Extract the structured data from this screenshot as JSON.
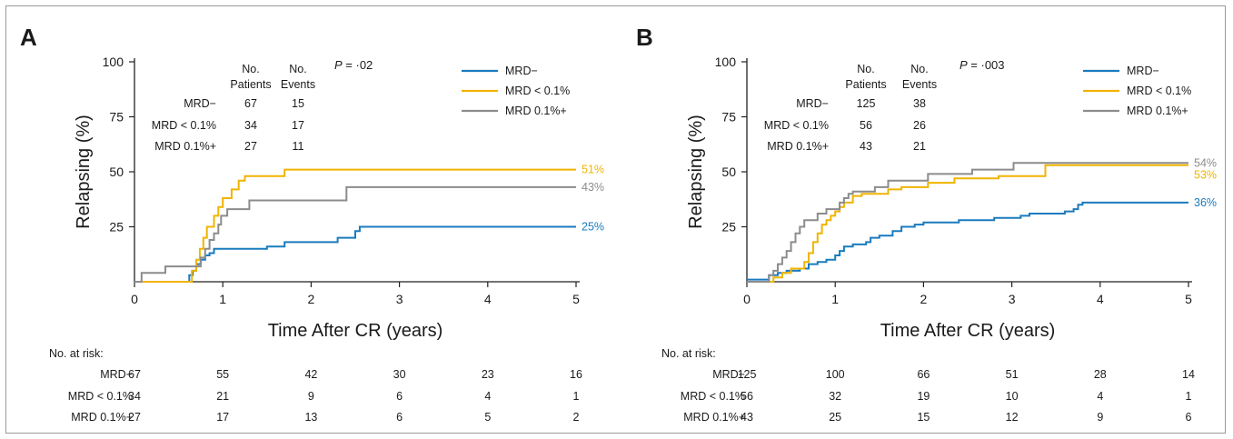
{
  "chart_data": [
    {
      "type": "line",
      "panel_label": "A",
      "xlabel": "Time After CR (years)",
      "ylabel": "Relapsing (%)",
      "xlim": [
        0,
        5
      ],
      "ylim": [
        0,
        100
      ],
      "x_ticks": [
        "0",
        "1",
        "2",
        "3",
        "4",
        "5"
      ],
      "y_ticks": [
        "25",
        "50",
        "75",
        "100"
      ],
      "p_value_label": "P",
      "p_value_text": " = ·02",
      "legend": [
        {
          "name": "MRD−",
          "color": "#1a7bbf"
        },
        {
          "name": "MRD < 0.1%",
          "color": "#f0b400"
        },
        {
          "name": "MRD 0.1%+",
          "color": "#8c8c8c"
        }
      ],
      "summary_table": {
        "col1_header_1": "No.",
        "col1_header_2": "Patients",
        "col2_header_1": "No.",
        "col2_header_2": "Events",
        "rows": [
          {
            "label": "MRD−",
            "patients": "67",
            "events": "15"
          },
          {
            "label": "MRD < 0.1%",
            "patients": "34",
            "events": "17"
          },
          {
            "label": "MRD 0.1%+",
            "patients": "27",
            "events": "11"
          }
        ]
      },
      "series": [
        {
          "name": "MRD−",
          "color": "#1a7bbf",
          "end_label": "25%",
          "points": [
            [
              0,
              0
            ],
            [
              0.6,
              0
            ],
            [
              0.62,
              3
            ],
            [
              0.66,
              5
            ],
            [
              0.7,
              8
            ],
            [
              0.75,
              10
            ],
            [
              0.8,
              12
            ],
            [
              0.85,
              13
            ],
            [
              0.9,
              15
            ],
            [
              1.5,
              15
            ],
            [
              1.5,
              16
            ],
            [
              1.7,
              16
            ],
            [
              1.7,
              18
            ],
            [
              2.3,
              18
            ],
            [
              2.3,
              20
            ],
            [
              2.5,
              20
            ],
            [
              2.5,
              23
            ],
            [
              2.55,
              23
            ],
            [
              2.55,
              25
            ],
            [
              5,
              25
            ]
          ]
        },
        {
          "name": "MRD < 0.1%",
          "color": "#f0b400",
          "end_label": "51%",
          "points": [
            [
              0,
              0
            ],
            [
              0.65,
              0
            ],
            [
              0.65,
              5
            ],
            [
              0.7,
              10
            ],
            [
              0.74,
              15
            ],
            [
              0.78,
              20
            ],
            [
              0.82,
              25
            ],
            [
              0.88,
              25
            ],
            [
              0.9,
              30
            ],
            [
              0.95,
              34
            ],
            [
              1.0,
              38
            ],
            [
              1.1,
              38
            ],
            [
              1.1,
              42
            ],
            [
              1.18,
              42
            ],
            [
              1.18,
              46
            ],
            [
              1.25,
              46
            ],
            [
              1.25,
              48
            ],
            [
              1.7,
              48
            ],
            [
              1.7,
              51
            ],
            [
              5,
              51
            ]
          ]
        },
        {
          "name": "MRD 0.1%+",
          "color": "#8c8c8c",
          "end_label": "43%",
          "points": [
            [
              0,
              0
            ],
            [
              0.08,
              0
            ],
            [
              0.08,
              4
            ],
            [
              0.35,
              4
            ],
            [
              0.35,
              7
            ],
            [
              0.75,
              7
            ],
            [
              0.75,
              11
            ],
            [
              0.8,
              15
            ],
            [
              0.85,
              19
            ],
            [
              0.9,
              22
            ],
            [
              0.95,
              26
            ],
            [
              0.98,
              30
            ],
            [
              1.05,
              30
            ],
            [
              1.05,
              33
            ],
            [
              1.3,
              33
            ],
            [
              1.3,
              37
            ],
            [
              2.4,
              37
            ],
            [
              2.4,
              43
            ],
            [
              5,
              43
            ]
          ]
        }
      ],
      "at_risk": {
        "title": "No. at risk:",
        "rows": [
          {
            "label": "MRD−",
            "values": [
              "67",
              "55",
              "42",
              "30",
              "23",
              "16"
            ]
          },
          {
            "label": "MRD < 0.1%",
            "values": [
              "34",
              "21",
              "9",
              "6",
              "4",
              "1"
            ]
          },
          {
            "label": "MRD 0.1%+",
            "values": [
              "27",
              "17",
              "13",
              "6",
              "5",
              "2"
            ]
          }
        ]
      }
    },
    {
      "type": "line",
      "panel_label": "B",
      "xlabel": "Time After CR (years)",
      "ylabel": "Relapsing (%)",
      "xlim": [
        0,
        5
      ],
      "ylim": [
        0,
        100
      ],
      "x_ticks": [
        "0",
        "1",
        "2",
        "3",
        "4",
        "5"
      ],
      "y_ticks": [
        "25",
        "50",
        "75",
        "100"
      ],
      "p_value_label": "P",
      "p_value_text": " = ·003",
      "legend": [
        {
          "name": "MRD−",
          "color": "#1a7bbf"
        },
        {
          "name": "MRD < 0.1%",
          "color": "#f0b400"
        },
        {
          "name": "MRD 0.1%+",
          "color": "#8c8c8c"
        }
      ],
      "summary_table": {
        "col1_header_1": "No.",
        "col1_header_2": "Patients",
        "col2_header_1": "No.",
        "col2_header_2": "Events",
        "rows": [
          {
            "label": "MRD−",
            "patients": "125",
            "events": "38"
          },
          {
            "label": "MRD < 0.1%",
            "patients": "56",
            "events": "26"
          },
          {
            "label": "MRD 0.1%+",
            "patients": "43",
            "events": "21"
          }
        ]
      },
      "series": [
        {
          "name": "MRD−",
          "color": "#1a7bbf",
          "end_label": "36%",
          "points": [
            [
              0,
              1
            ],
            [
              0.2,
              1
            ],
            [
              0.25,
              3
            ],
            [
              0.35,
              4
            ],
            [
              0.45,
              5
            ],
            [
              0.6,
              6
            ],
            [
              0.7,
              8
            ],
            [
              0.8,
              9
            ],
            [
              0.9,
              10
            ],
            [
              1.0,
              12
            ],
            [
              1.05,
              14
            ],
            [
              1.1,
              16
            ],
            [
              1.2,
              17
            ],
            [
              1.35,
              18
            ],
            [
              1.4,
              20
            ],
            [
              1.5,
              21
            ],
            [
              1.65,
              23
            ],
            [
              1.75,
              25
            ],
            [
              1.9,
              26
            ],
            [
              2.0,
              27
            ],
            [
              2.3,
              27
            ],
            [
              2.4,
              28
            ],
            [
              2.7,
              28
            ],
            [
              2.8,
              29
            ],
            [
              3.0,
              29
            ],
            [
              3.1,
              30
            ],
            [
              3.2,
              31
            ],
            [
              3.5,
              31
            ],
            [
              3.6,
              32
            ],
            [
              3.7,
              33
            ],
            [
              3.75,
              35
            ],
            [
              3.8,
              36
            ],
            [
              5,
              36
            ]
          ]
        },
        {
          "name": "MRD < 0.1%",
          "color": "#f0b400",
          "end_label": "53%",
          "points": [
            [
              0,
              0
            ],
            [
              0.25,
              0
            ],
            [
              0.3,
              2
            ],
            [
              0.4,
              4
            ],
            [
              0.5,
              6
            ],
            [
              0.6,
              6
            ],
            [
              0.65,
              9
            ],
            [
              0.7,
              13
            ],
            [
              0.75,
              18
            ],
            [
              0.8,
              22
            ],
            [
              0.85,
              26
            ],
            [
              0.9,
              28
            ],
            [
              0.95,
              30
            ],
            [
              1.0,
              32
            ],
            [
              1.05,
              34
            ],
            [
              1.1,
              36
            ],
            [
              1.2,
              39
            ],
            [
              1.3,
              40
            ],
            [
              1.5,
              40
            ],
            [
              1.6,
              42
            ],
            [
              1.75,
              43
            ],
            [
              2.0,
              43
            ],
            [
              2.05,
              45
            ],
            [
              2.3,
              45
            ],
            [
              2.35,
              47
            ],
            [
              2.8,
              47
            ],
            [
              2.85,
              48
            ],
            [
              3.35,
              48
            ],
            [
              3.38,
              53
            ],
            [
              5,
              53
            ]
          ]
        },
        {
          "name": "MRD 0.1%+",
          "color": "#8c8c8c",
          "end_label": "54%",
          "points": [
            [
              0,
              0
            ],
            [
              0.2,
              0
            ],
            [
              0.25,
              3
            ],
            [
              0.3,
              5
            ],
            [
              0.35,
              8
            ],
            [
              0.4,
              11
            ],
            [
              0.45,
              14
            ],
            [
              0.5,
              18
            ],
            [
              0.55,
              22
            ],
            [
              0.6,
              25
            ],
            [
              0.65,
              28
            ],
            [
              0.7,
              28
            ],
            [
              0.8,
              31
            ],
            [
              0.9,
              33
            ],
            [
              1.0,
              33
            ],
            [
              1.05,
              36
            ],
            [
              1.1,
              38
            ],
            [
              1.15,
              40
            ],
            [
              1.2,
              41
            ],
            [
              1.4,
              41
            ],
            [
              1.45,
              43
            ],
            [
              1.6,
              46
            ],
            [
              2.0,
              46
            ],
            [
              2.05,
              49
            ],
            [
              2.5,
              49
            ],
            [
              2.55,
              51
            ],
            [
              3.0,
              51
            ],
            [
              3.02,
              54
            ],
            [
              5,
              54
            ]
          ]
        }
      ],
      "at_risk": {
        "title": "No. at risk:",
        "rows": [
          {
            "label": "MRD−",
            "values": [
              "125",
              "100",
              "66",
              "51",
              "28",
              "14"
            ]
          },
          {
            "label": "MRD < 0.1%",
            "values": [
              "56",
              "32",
              "19",
              "10",
              "4",
              "1"
            ]
          },
          {
            "label": "MRD 0.1%+",
            "values": [
              "43",
              "25",
              "15",
              "12",
              "9",
              "6"
            ]
          }
        ]
      }
    }
  ]
}
